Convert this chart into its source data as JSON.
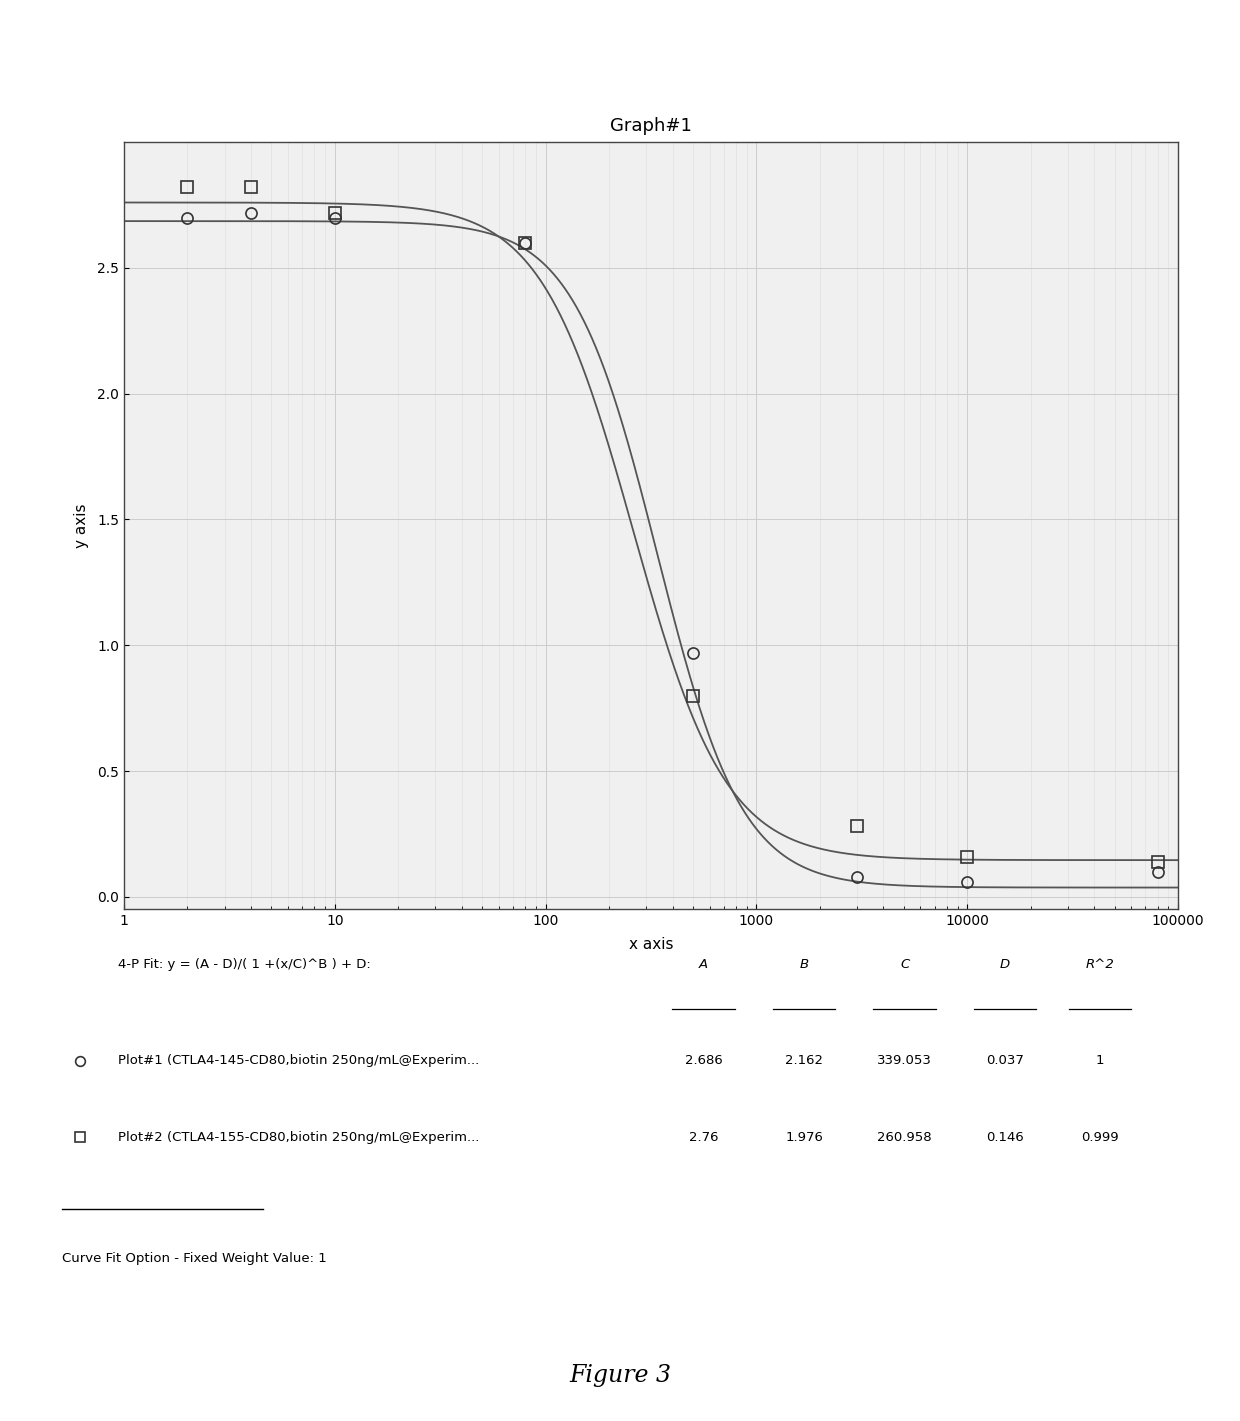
{
  "title": "Graph#1",
  "xlabel": "x axis",
  "ylabel": "y axis",
  "figure_caption": "Figure 3",
  "xlim": [
    1,
    100000
  ],
  "ylim": [
    -0.05,
    3.0
  ],
  "yticks": [
    0,
    0.5,
    1,
    1.5,
    2,
    2.5
  ],
  "plot1": {
    "label": "Plot#1 (CTLA4-145-CD80,biotin 250ng/mL@Experim...",
    "marker": "o",
    "A": 2.686,
    "B": 2.162,
    "C": 339.053,
    "D": 0.037,
    "R2": 1,
    "data_x": [
      2,
      4,
      10,
      80,
      500,
      3000,
      10000,
      80000
    ],
    "data_y": [
      2.7,
      2.72,
      2.7,
      2.6,
      0.97,
      0.08,
      0.06,
      0.1
    ]
  },
  "plot2": {
    "label": "Plot#2 (CTLA4-155-CD80,biotin 250ng/mL@Experim...",
    "marker": "s",
    "A": 2.76,
    "B": 1.976,
    "C": 260.958,
    "D": 0.146,
    "R2": 0.999,
    "data_x": [
      2,
      4,
      10,
      80,
      500,
      3000,
      10000,
      80000
    ],
    "data_y": [
      2.82,
      2.82,
      2.72,
      2.6,
      0.8,
      0.28,
      0.16,
      0.14
    ]
  },
  "legend_formula": "4-P Fit: y = (A - D)/( 1 +(x/C)^B ) + D:",
  "legend_col_headers": [
    "A",
    "B",
    "C",
    "D",
    "R^2"
  ],
  "curve_fit_note": "Curve Fit Option - Fixed Weight Value: 1",
  "line_color": "#555555",
  "bg_color": "#ffffff",
  "grid_color": "#cccccc",
  "grid_minor_color": "#dddddd"
}
